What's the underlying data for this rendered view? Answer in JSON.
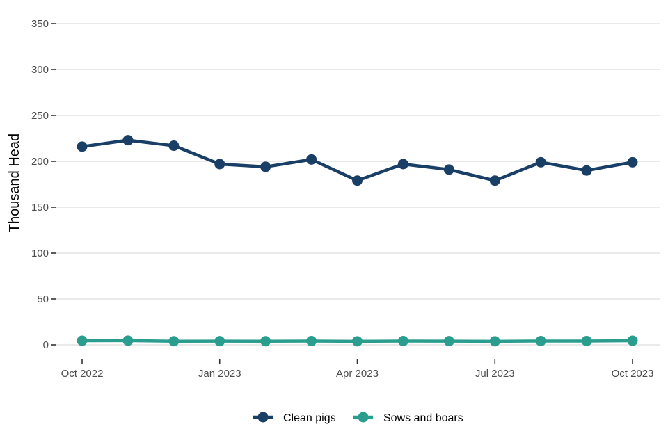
{
  "chart_data": {
    "type": "line",
    "title": "",
    "xlabel": "",
    "ylabel": "Thousand Head",
    "x": [
      "2022-10",
      "2022-11",
      "2022-12",
      "2023-01",
      "2023-02",
      "2023-03",
      "2023-04",
      "2023-05",
      "2023-06",
      "2023-07",
      "2023-08",
      "2023-09",
      "2023-10"
    ],
    "x_tick_labels": [
      {
        "x": "2022-10",
        "label": "Oct 2022"
      },
      {
        "x": "2023-01",
        "label": "Jan 2023"
      },
      {
        "x": "2023-04",
        "label": "Apr 2023"
      },
      {
        "x": "2023-07",
        "label": "Jul 2023"
      },
      {
        "x": "2023-10",
        "label": "Oct 2023"
      }
    ],
    "ylim": [
      0,
      350
    ],
    "y_ticks": [
      0,
      50,
      100,
      150,
      200,
      250,
      300,
      350
    ],
    "grid": "horizontal",
    "legend_position": "bottom",
    "series": [
      {
        "name": "Clean pigs",
        "color": "#1a3f66",
        "values": [
          216,
          223,
          217,
          197,
          194,
          202,
          179,
          197,
          191,
          179,
          199,
          190,
          199
        ]
      },
      {
        "name": "Sows and boars",
        "color": "#2a9d8f",
        "values": [
          4.5,
          4.6,
          4.0,
          4.1,
          4.0,
          4.2,
          3.9,
          4.2,
          4.1,
          3.9,
          4.2,
          4.2,
          4.5
        ]
      }
    ]
  }
}
